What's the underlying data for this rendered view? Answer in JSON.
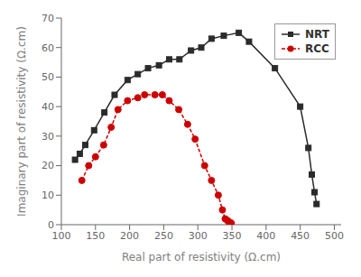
{
  "chart_data": {
    "type": "line",
    "xlabel": "Real part of resistivity (Ω.cm)",
    "ylabel": "Imaginary part of resistivity (Ω.cm)",
    "xlim": [
      100,
      510
    ],
    "ylim": [
      0,
      70
    ],
    "xticks": [
      100,
      150,
      200,
      250,
      300,
      350,
      400,
      450,
      500
    ],
    "yticks": [
      0,
      10,
      20,
      30,
      40,
      50,
      60,
      70
    ],
    "grid": false,
    "legend": "upper right",
    "series": [
      {
        "name": "NRT",
        "color": "#2b2b2b",
        "marker": "square",
        "line_style": "solid",
        "x": [
          120,
          127,
          135,
          148,
          163,
          178,
          197,
          212,
          227,
          243,
          258,
          273,
          290,
          305,
          320,
          338,
          360,
          375,
          413,
          450,
          462,
          467,
          471,
          474
        ],
        "values": [
          22,
          24,
          27,
          32,
          38,
          44,
          49,
          51,
          53,
          54,
          56,
          56,
          59,
          60,
          63,
          64,
          65,
          62,
          53,
          40,
          26,
          17,
          11,
          7
        ]
      },
      {
        "name": "RCC",
        "color": "#cc0000",
        "marker": "circle",
        "line_style": "dashed",
        "x": [
          130,
          140,
          150,
          162,
          173,
          183,
          197,
          212,
          222,
          237,
          248,
          258,
          272,
          285,
          296,
          310,
          320,
          330,
          336,
          340,
          343,
          345,
          347,
          349
        ],
        "values": [
          15,
          20,
          23,
          27,
          33,
          39,
          42,
          43,
          44,
          44,
          44,
          42,
          39,
          34,
          29,
          20,
          15,
          10,
          5,
          2,
          1.5,
          1,
          0.8,
          0.5
        ]
      }
    ]
  }
}
